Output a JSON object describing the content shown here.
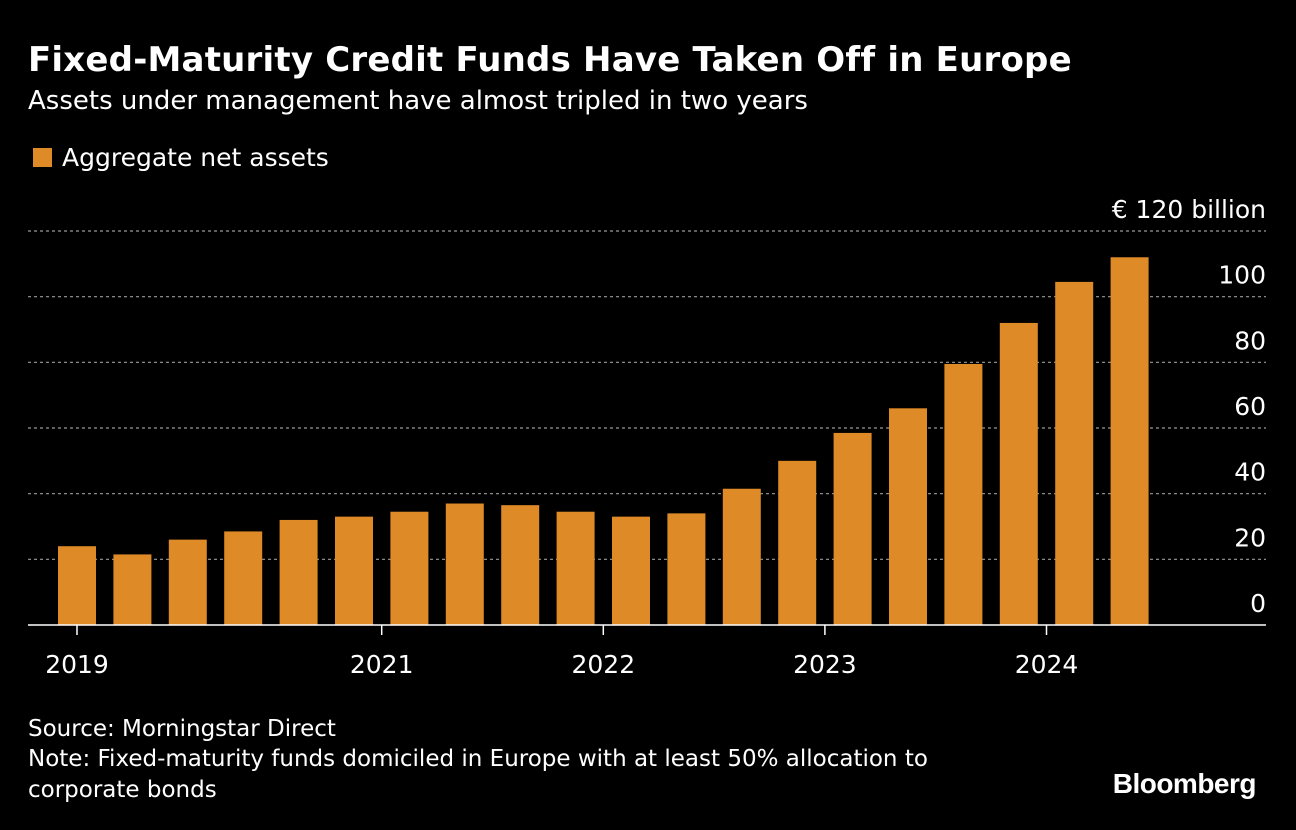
{
  "colors": {
    "bar": "#de8a27",
    "grid": "#9a9a9a",
    "axis": "#ffffff",
    "text": "#ffffff",
    "background": "#000000"
  },
  "chart_data": {
    "type": "bar",
    "title": "Fixed-Maturity Credit Funds Have Taken Off in Europe",
    "subtitle": "Assets under management have almost tripled in two years",
    "series": [
      {
        "name": "Aggregate net assets",
        "values": [
          24,
          21.5,
          26,
          28.5,
          32,
          33,
          34.5,
          37,
          36.5,
          34.5,
          33,
          34,
          41.5,
          50,
          58.5,
          66,
          79.5,
          92,
          104.5,
          112
        ]
      }
    ],
    "ylim": [
      0,
      120
    ],
    "y_ticks": [
      {
        "value": 0,
        "label": "0"
      },
      {
        "value": 20,
        "label": "20"
      },
      {
        "value": 40,
        "label": "40"
      },
      {
        "value": 60,
        "label": "60"
      },
      {
        "value": 80,
        "label": "80"
      },
      {
        "value": 100,
        "label": "100"
      },
      {
        "value": 120,
        "label": "€ 120 billion"
      }
    ],
    "x_ticks": [
      {
        "label": "2019",
        "after_bar": 0
      },
      {
        "label": "2021",
        "after_bar": 5
      },
      {
        "label": "2022",
        "after_bar": 9
      },
      {
        "label": "2023",
        "after_bar": 13
      },
      {
        "label": "2024",
        "after_bar": 17
      }
    ],
    "grid": true,
    "legend_position": "top-left"
  },
  "footer": {
    "source": "Source: Morningstar Direct",
    "note_line1": "Note: Fixed-maturity funds domiciled in Europe with at least 50% allocation to",
    "note_line2": "corporate bonds",
    "brand": "Bloomberg"
  }
}
